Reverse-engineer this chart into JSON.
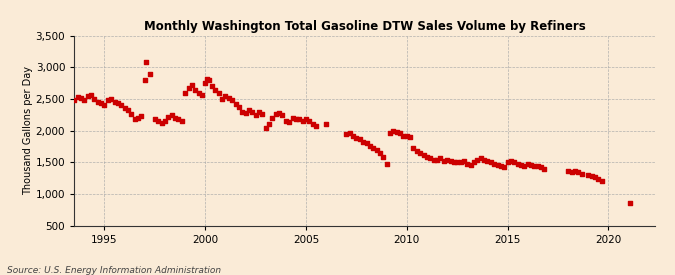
{
  "title": "Monthly Washington Total Gasoline DTW Sales Volume by Refiners",
  "ylabel": "Thousand Gallons per Day",
  "source": "Source: U.S. Energy Information Administration",
  "background_color": "#faebd7",
  "marker_color": "#cc0000",
  "marker_size": 5,
  "ylim": [
    500,
    3500
  ],
  "yticks": [
    500,
    1000,
    1500,
    2000,
    2500,
    3000,
    3500
  ],
  "xlim": [
    1993.5,
    2022.3
  ],
  "xticks": [
    1995,
    2000,
    2005,
    2010,
    2015,
    2020
  ],
  "data": [
    [
      1993.5,
      2480
    ],
    [
      1993.67,
      2530
    ],
    [
      1993.83,
      2510
    ],
    [
      1994.0,
      2490
    ],
    [
      1994.17,
      2540
    ],
    [
      1994.33,
      2560
    ],
    [
      1994.5,
      2500
    ],
    [
      1994.67,
      2460
    ],
    [
      1994.83,
      2430
    ],
    [
      1995.0,
      2400
    ],
    [
      1995.17,
      2480
    ],
    [
      1995.33,
      2500
    ],
    [
      1995.5,
      2460
    ],
    [
      1995.67,
      2430
    ],
    [
      1995.83,
      2410
    ],
    [
      1996.0,
      2350
    ],
    [
      1996.17,
      2320
    ],
    [
      1996.33,
      2260
    ],
    [
      1996.5,
      2180
    ],
    [
      1996.67,
      2200
    ],
    [
      1996.83,
      2230
    ],
    [
      1997.0,
      2800
    ],
    [
      1997.08,
      3080
    ],
    [
      1997.25,
      2900
    ],
    [
      1997.5,
      2180
    ],
    [
      1997.67,
      2150
    ],
    [
      1997.83,
      2120
    ],
    [
      1998.0,
      2160
    ],
    [
      1998.17,
      2220
    ],
    [
      1998.33,
      2240
    ],
    [
      1998.5,
      2200
    ],
    [
      1998.67,
      2180
    ],
    [
      1998.83,
      2160
    ],
    [
      1999.0,
      2600
    ],
    [
      1999.17,
      2680
    ],
    [
      1999.33,
      2720
    ],
    [
      1999.5,
      2650
    ],
    [
      1999.67,
      2600
    ],
    [
      1999.83,
      2560
    ],
    [
      2000.0,
      2750
    ],
    [
      2000.08,
      2820
    ],
    [
      2000.17,
      2800
    ],
    [
      2000.33,
      2700
    ],
    [
      2000.5,
      2640
    ],
    [
      2000.67,
      2600
    ],
    [
      2000.83,
      2500
    ],
    [
      2001.0,
      2540
    ],
    [
      2001.17,
      2520
    ],
    [
      2001.33,
      2480
    ],
    [
      2001.5,
      2420
    ],
    [
      2001.67,
      2380
    ],
    [
      2001.83,
      2300
    ],
    [
      2002.0,
      2280
    ],
    [
      2002.17,
      2320
    ],
    [
      2002.33,
      2300
    ],
    [
      2002.5,
      2240
    ],
    [
      2002.67,
      2300
    ],
    [
      2002.83,
      2260
    ],
    [
      2003.0,
      2040
    ],
    [
      2003.17,
      2100
    ],
    [
      2003.33,
      2200
    ],
    [
      2003.5,
      2260
    ],
    [
      2003.67,
      2280
    ],
    [
      2003.83,
      2240
    ],
    [
      2004.0,
      2160
    ],
    [
      2004.17,
      2140
    ],
    [
      2004.33,
      2200
    ],
    [
      2004.5,
      2180
    ],
    [
      2004.67,
      2180
    ],
    [
      2004.83,
      2160
    ],
    [
      2005.0,
      2180
    ],
    [
      2005.17,
      2160
    ],
    [
      2005.33,
      2100
    ],
    [
      2005.5,
      2080
    ],
    [
      2006.0,
      2100
    ],
    [
      2007.0,
      1940
    ],
    [
      2007.17,
      1960
    ],
    [
      2007.33,
      1920
    ],
    [
      2007.5,
      1880
    ],
    [
      2007.67,
      1860
    ],
    [
      2007.83,
      1820
    ],
    [
      2008.0,
      1800
    ],
    [
      2008.17,
      1760
    ],
    [
      2008.33,
      1720
    ],
    [
      2008.5,
      1700
    ],
    [
      2008.67,
      1640
    ],
    [
      2008.83,
      1580
    ],
    [
      2009.0,
      1480
    ],
    [
      2009.17,
      1960
    ],
    [
      2009.33,
      2000
    ],
    [
      2009.5,
      1980
    ],
    [
      2009.67,
      1960
    ],
    [
      2009.83,
      1920
    ],
    [
      2010.0,
      1920
    ],
    [
      2010.17,
      1900
    ],
    [
      2010.33,
      1720
    ],
    [
      2010.5,
      1680
    ],
    [
      2010.67,
      1640
    ],
    [
      2010.83,
      1620
    ],
    [
      2011.0,
      1580
    ],
    [
      2011.17,
      1560
    ],
    [
      2011.33,
      1540
    ],
    [
      2011.5,
      1540
    ],
    [
      2011.67,
      1560
    ],
    [
      2011.83,
      1520
    ],
    [
      2012.0,
      1540
    ],
    [
      2012.17,
      1520
    ],
    [
      2012.33,
      1510
    ],
    [
      2012.5,
      1500
    ],
    [
      2012.67,
      1510
    ],
    [
      2012.83,
      1520
    ],
    [
      2013.0,
      1480
    ],
    [
      2013.17,
      1460
    ],
    [
      2013.33,
      1500
    ],
    [
      2013.5,
      1540
    ],
    [
      2013.67,
      1560
    ],
    [
      2013.83,
      1540
    ],
    [
      2014.0,
      1520
    ],
    [
      2014.17,
      1500
    ],
    [
      2014.33,
      1480
    ],
    [
      2014.5,
      1460
    ],
    [
      2014.67,
      1440
    ],
    [
      2014.83,
      1420
    ],
    [
      2015.0,
      1500
    ],
    [
      2015.17,
      1520
    ],
    [
      2015.33,
      1500
    ],
    [
      2015.5,
      1480
    ],
    [
      2015.67,
      1460
    ],
    [
      2015.83,
      1440
    ],
    [
      2016.0,
      1480
    ],
    [
      2016.17,
      1460
    ],
    [
      2016.33,
      1440
    ],
    [
      2016.5,
      1440
    ],
    [
      2016.67,
      1420
    ],
    [
      2016.83,
      1400
    ],
    [
      2018.0,
      1360
    ],
    [
      2018.17,
      1340
    ],
    [
      2018.33,
      1360
    ],
    [
      2018.5,
      1340
    ],
    [
      2018.67,
      1320
    ],
    [
      2019.0,
      1300
    ],
    [
      2019.17,
      1280
    ],
    [
      2019.33,
      1260
    ],
    [
      2019.5,
      1240
    ],
    [
      2019.67,
      1200
    ],
    [
      2021.08,
      860
    ]
  ]
}
